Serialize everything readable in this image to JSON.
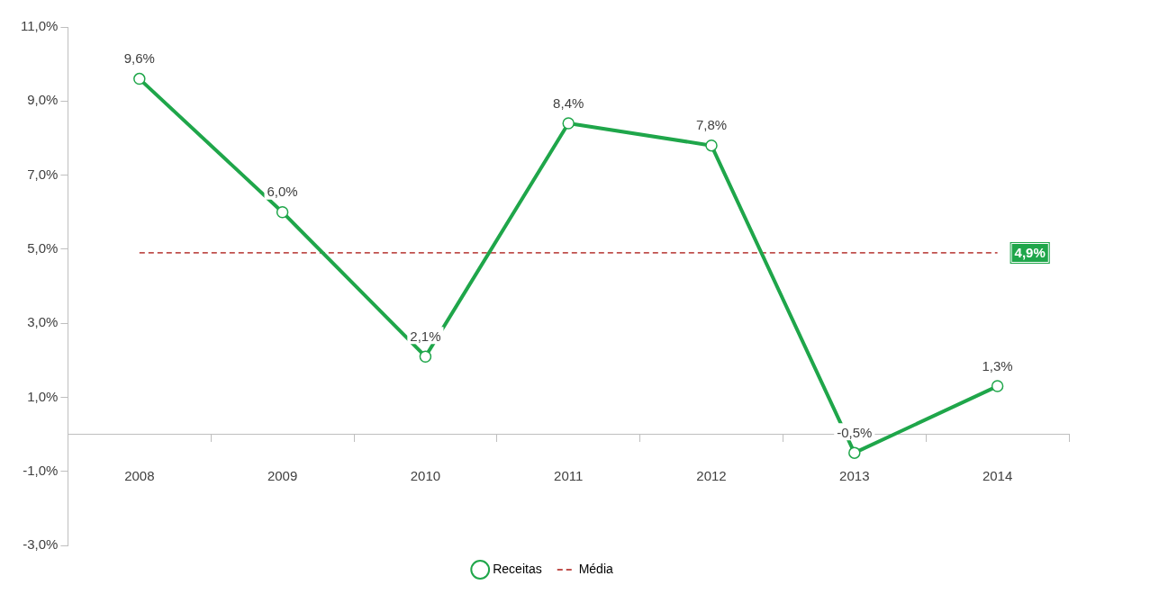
{
  "chart_data": {
    "type": "line",
    "categories": [
      "2008",
      "2009",
      "2010",
      "2011",
      "2012",
      "2013",
      "2014"
    ],
    "series": [
      {
        "name": "Receitas",
        "color": "#1fa64a",
        "marker": "circle",
        "line_style": "solid",
        "values": [
          9.6,
          6.0,
          2.1,
          8.4,
          7.8,
          -0.5,
          1.3
        ],
        "value_labels": [
          "9,6%",
          "6,0%",
          "2,1%",
          "8,4%",
          "7,8%",
          "-0,5%",
          "1,3%"
        ]
      },
      {
        "name": "Média",
        "color": "#c0504d",
        "marker": "none",
        "line_style": "dashed",
        "values": [
          4.9,
          4.9,
          4.9,
          4.9,
          4.9,
          4.9,
          4.9
        ],
        "value_labels": [
          null,
          null,
          null,
          null,
          null,
          null,
          "4,9%"
        ]
      }
    ],
    "ylim": [
      -3,
      11
    ],
    "yticks": [
      {
        "value": -3,
        "label": "-3,0%"
      },
      {
        "value": -1,
        "label": "-1,0%"
      },
      {
        "value": 1,
        "label": "1,0%"
      },
      {
        "value": 3,
        "label": "3,0%"
      },
      {
        "value": 5,
        "label": "5,0%"
      },
      {
        "value": 7,
        "label": "7,0%"
      },
      {
        "value": 9,
        "label": "9,0%"
      },
      {
        "value": 11,
        "label": "11,0%"
      }
    ],
    "grid": false,
    "legend": "bottom"
  }
}
